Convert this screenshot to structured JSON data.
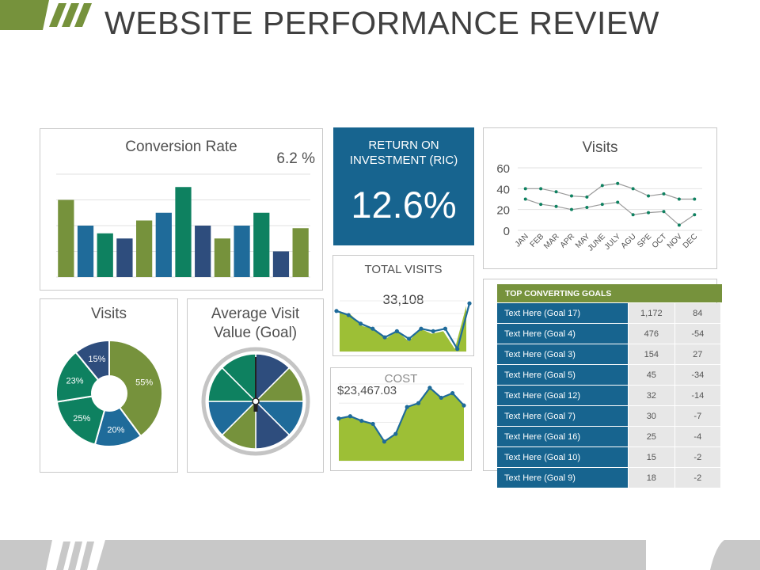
{
  "page": {
    "title": "WEBSITE PERFORMANCE REVIEW"
  },
  "colors": {
    "green": "#76923c",
    "blue": "#1f6b9a",
    "teal": "#0e8160",
    "navy": "#2e4d7d",
    "lime": "#9dbf36",
    "grey": "#c7c7c7"
  },
  "conversion": {
    "title": "Conversion Rate",
    "value": "6.2 %",
    "chart_data": {
      "type": "bar",
      "values": [
        30,
        20,
        17,
        15,
        22,
        25,
        35,
        20,
        15,
        20,
        25,
        10,
        19
      ],
      "colors": [
        "#76923c",
        "#1f6b9a",
        "#0e8160",
        "#2e4d7d",
        "#76923c",
        "#1f6b9a",
        "#0e8160",
        "#2e4d7d",
        "#76923c",
        "#1f6b9a",
        "#0e8160",
        "#2e4d7d",
        "#76923c"
      ],
      "ylim": [
        0,
        40
      ]
    }
  },
  "roi": {
    "title": "RETURN ON INVESTMENT (RIC)",
    "value": "12.6%"
  },
  "visits_line": {
    "title": "Visits",
    "chart_data": {
      "type": "line",
      "categories": [
        "JAN",
        "FEB",
        "MAR",
        "APR",
        "MAY",
        "JUNE",
        "JULY",
        "AGU",
        "SPE",
        "OCT",
        "NOV",
        "DEC"
      ],
      "yticks": [
        "0",
        "20",
        "40",
        "60"
      ],
      "ylim": [
        0,
        60
      ],
      "grid": true,
      "series": [
        {
          "values": [
            40,
            40,
            37,
            33,
            32,
            43,
            45,
            40,
            33,
            35,
            30,
            30
          ],
          "color": "#0e8160"
        },
        {
          "values": [
            30,
            25,
            23,
            20,
            22,
            25,
            27,
            15,
            17,
            18,
            5,
            15
          ],
          "color": "#0e8160"
        }
      ]
    }
  },
  "total_visits": {
    "title": "TOTAL VISITS",
    "value": "33,108",
    "chart_data": {
      "type": "area",
      "ylim": [
        0,
        100
      ],
      "values": [
        78,
        72,
        50,
        45,
        25,
        40,
        20,
        45,
        35,
        40,
        5,
        90
      ],
      "line": [
        80,
        72,
        55,
        45,
        28,
        40,
        25,
        45,
        40,
        45,
        5,
        95
      ]
    }
  },
  "cost": {
    "title": "COST",
    "value": "$23,467.03",
    "chart_data": {
      "type": "area",
      "ylim": [
        0,
        100
      ],
      "values": [
        55,
        58,
        52,
        48,
        25,
        35,
        70,
        75,
        95,
        82,
        88,
        72
      ],
      "line": [
        55,
        58,
        52,
        48,
        25,
        35,
        70,
        75,
        95,
        82,
        88,
        72
      ]
    }
  },
  "visits_pie": {
    "title": "Visits",
    "chart_data": {
      "type": "pie",
      "labels": [
        "55%",
        "20%",
        "25%",
        "23%",
        "15%"
      ],
      "values": [
        55,
        20,
        25,
        23,
        15
      ],
      "colors": [
        "#76923c",
        "#1f6b9a",
        "#0e8160",
        "#0e8160",
        "#2e4d7d"
      ]
    }
  },
  "avg_visit": {
    "title_line1": "Average Visit",
    "title_line2": "Value (Goal)",
    "chart_data": {
      "type": "pie",
      "values": [
        1,
        1,
        1,
        1,
        1,
        1,
        1,
        1
      ],
      "colors": [
        "#2e4d7d",
        "#76923c",
        "#1f6b9a",
        "#2e4d7d",
        "#76923c",
        "#1f6b9a",
        "#0e8160",
        "#0e8160"
      ],
      "needle": 0
    }
  },
  "goals": {
    "title": "TOP CONVERTING GOALS",
    "rows": [
      {
        "label": "Text Here (Goal 17)",
        "v1": "1,172",
        "v2": "84"
      },
      {
        "label": "Text Here (Goal 4)",
        "v1": "476",
        "v2": "-54"
      },
      {
        "label": "Text Here (Goal 3)",
        "v1": "154",
        "v2": "27"
      },
      {
        "label": "Text Here (Goal 5)",
        "v1": "45",
        "v2": "-34"
      },
      {
        "label": "Text Here (Goal 12)",
        "v1": "32",
        "v2": "-14"
      },
      {
        "label": "Text Here (Goal 7)",
        "v1": "30",
        "v2": "-7"
      },
      {
        "label": "Text Here (Goal 16)",
        "v1": "25",
        "v2": "-4"
      },
      {
        "label": "Text Here (Goal 10)",
        "v1": "15",
        "v2": "-2"
      },
      {
        "label": "Text Here (Goal 9)",
        "v1": "18",
        "v2": "-2"
      }
    ]
  }
}
